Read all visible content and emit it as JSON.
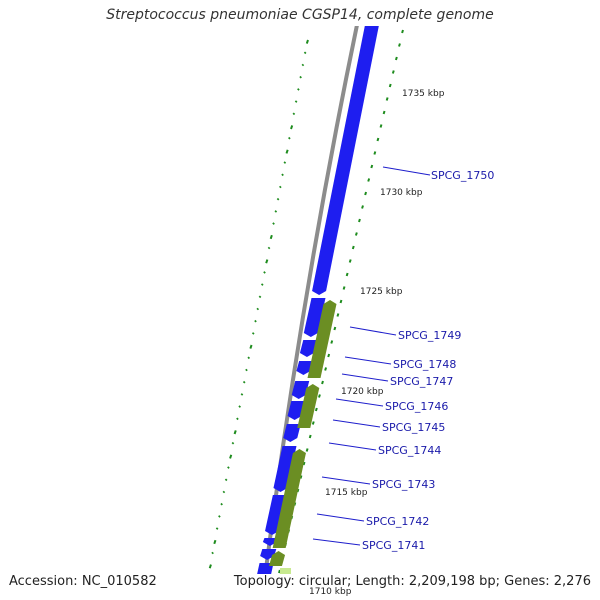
{
  "header": {
    "title": "Streptococcus pneumoniae CGSP14, complete genome"
  },
  "footer": {
    "accession": "Accession: NC_010582",
    "summary": "Topology: circular; Length: 2,209,198 bp; Genes: 2,276"
  },
  "colors": {
    "backbone": "#8c8c8c",
    "forward_gene": "#1e1ef0",
    "reverse_gene": "#6b8e23",
    "dash": "#1e8c1e",
    "label_line": "#1e1ecc",
    "label_text": "#1a1aaa"
  },
  "ticks": [
    "1735 kbp",
    "1730 kbp",
    "1725 kbp",
    "1720 kbp",
    "1715 kbp",
    "1710 kbp"
  ],
  "gene_labels": [
    "SPCG_1750",
    "SPCG_1749",
    "SPCG_1748",
    "SPCG_1747",
    "SPCG_1746",
    "SPCG_1745",
    "SPCG_1744",
    "SPCG_1743",
    "SPCG_1742",
    "SPCG_1741"
  ]
}
